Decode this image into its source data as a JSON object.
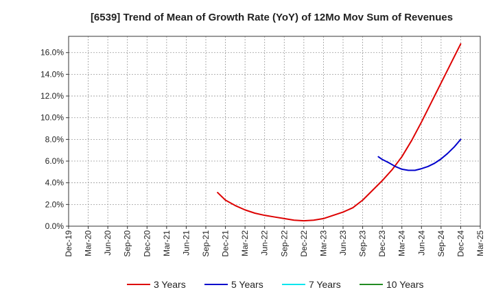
{
  "chart_data": {
    "type": "line",
    "title": "[6539]  Trend of Mean of Growth Rate (YoY) of 12Mo Mov Sum of Revenues",
    "xlabel": "",
    "ylabel": "",
    "ylim": [
      0,
      17.5
    ],
    "y_ticks": [
      0,
      2,
      4,
      6,
      8,
      10,
      12,
      14,
      16
    ],
    "y_tick_labels": [
      "0.0%",
      "2.0%",
      "4.0%",
      "6.0%",
      "8.0%",
      "10.0%",
      "12.0%",
      "14.0%",
      "16.0%"
    ],
    "x_tick_labels": [
      "Dec-19",
      "Mar-20",
      "Jun-20",
      "Sep-20",
      "Dec-20",
      "Mar-21",
      "Jun-21",
      "Sep-21",
      "Dec-21",
      "Mar-22",
      "Jun-22",
      "Sep-22",
      "Dec-22",
      "Mar-23",
      "Jun-23",
      "Sep-23",
      "Dec-23",
      "Mar-24",
      "Jun-24",
      "Sep-24",
      "Dec-24",
      "Mar-25"
    ],
    "grid": true,
    "legend_position": "bottom",
    "series": [
      {
        "name": "3 Years",
        "color": "#dd0000",
        "x": [
          7.6,
          8,
          8.5,
          9,
          9.5,
          10,
          10.5,
          11,
          11.5,
          12,
          12.5,
          13,
          13.5,
          14,
          14.5,
          15,
          15.5,
          16,
          16.5,
          17,
          17.5,
          18,
          18.5,
          19,
          19.5,
          20
        ],
        "values": [
          3.1,
          2.4,
          1.9,
          1.5,
          1.2,
          1.0,
          0.85,
          0.7,
          0.55,
          0.5,
          0.55,
          0.7,
          1.0,
          1.3,
          1.7,
          2.4,
          3.3,
          4.2,
          5.2,
          6.4,
          7.9,
          9.6,
          11.4,
          13.2,
          15.0,
          16.8
        ]
      },
      {
        "name": "5 Years",
        "color": "#0000cc",
        "x": [
          15.8,
          16,
          16.33,
          16.67,
          17,
          17.33,
          17.67,
          18,
          18.33,
          18.67,
          19,
          19.33,
          19.67,
          20
        ],
        "values": [
          6.4,
          6.15,
          5.85,
          5.5,
          5.25,
          5.15,
          5.15,
          5.3,
          5.5,
          5.8,
          6.2,
          6.7,
          7.3,
          8.0
        ]
      },
      {
        "name": "7 Years",
        "color": "#00e5ee",
        "x": [],
        "values": []
      },
      {
        "name": "10 Years",
        "color": "#228b22",
        "x": [],
        "values": []
      }
    ]
  }
}
